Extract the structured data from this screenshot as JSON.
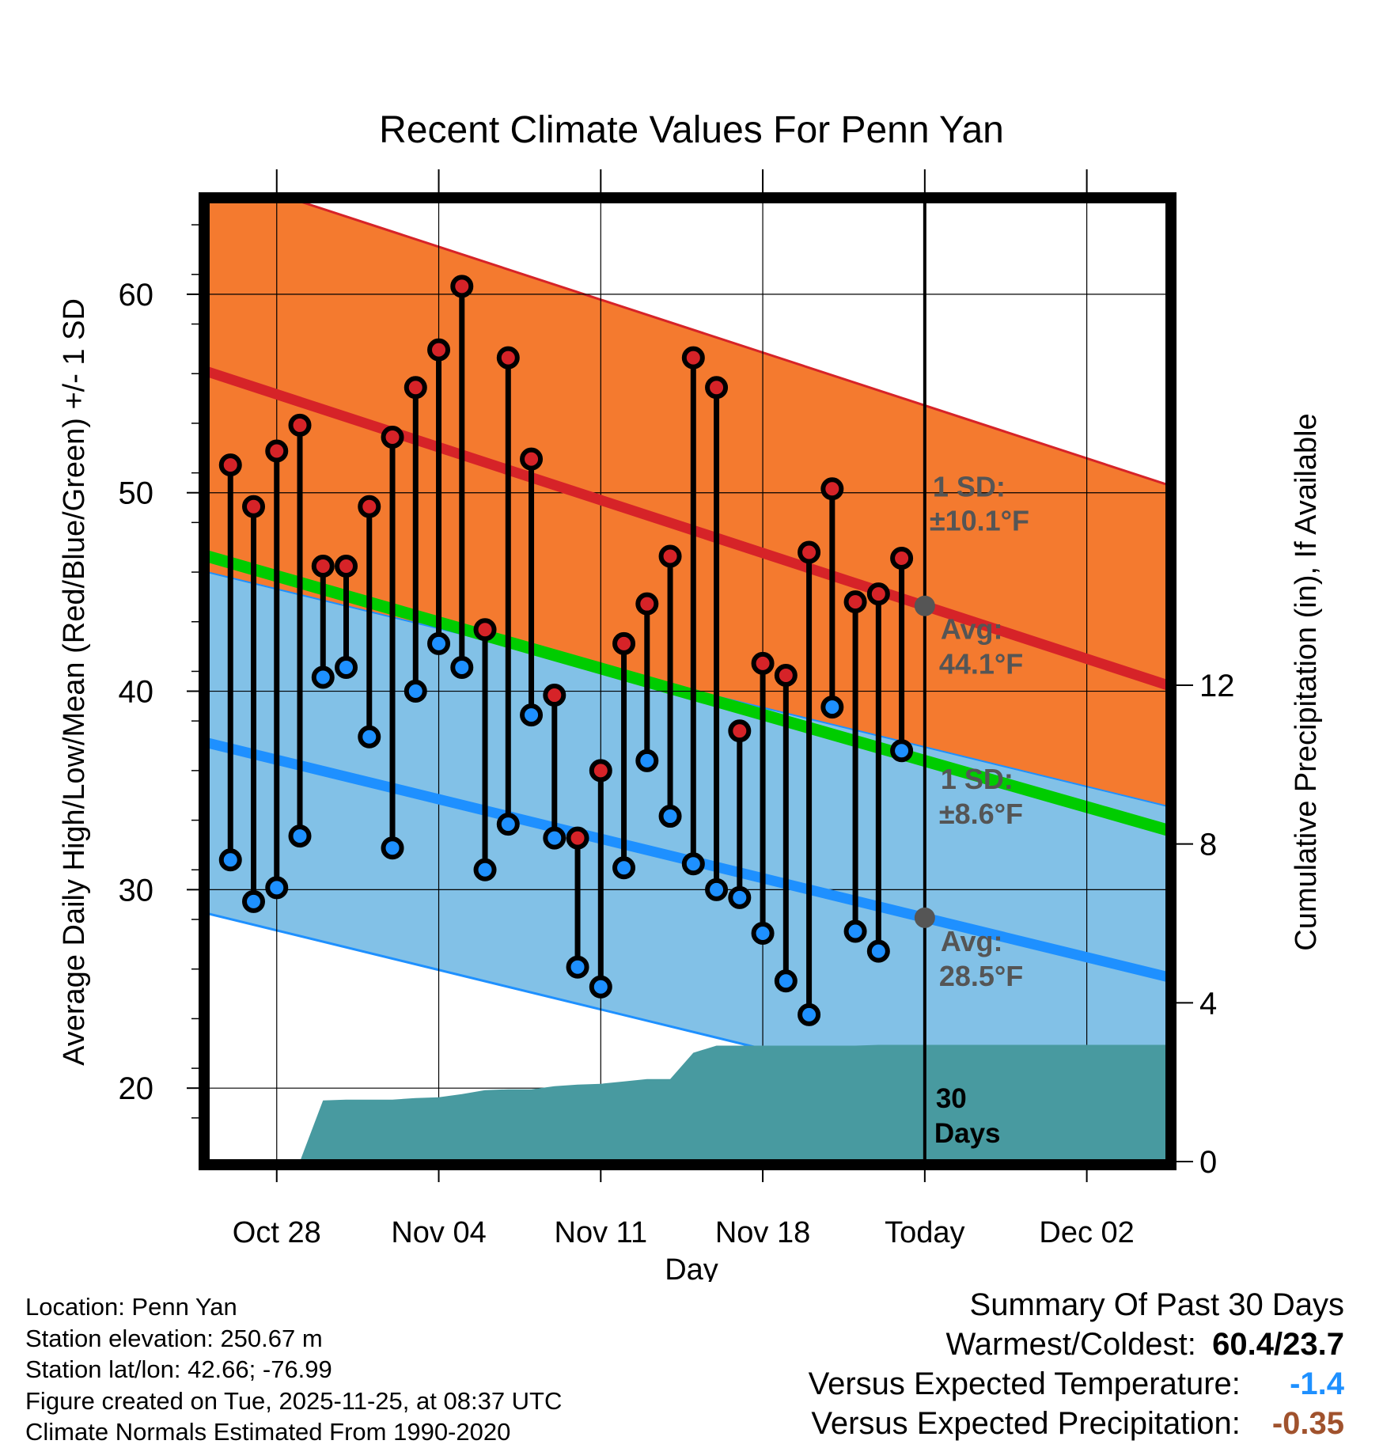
{
  "chart_data": {
    "type": "climate_range",
    "title": "Recent Climate Values For Penn Yan",
    "xlabel": "Day",
    "ylabel_left": "Average Daily High/Low/Mean (Red/Blue/Green) +/- 1 SD",
    "ylabel_right": "Cumulative Precipitation (in), If Available",
    "x_tick_labels": [
      "Oct 28",
      "Nov 04",
      "Nov 11",
      "Nov 18",
      "Today",
      "Dec 02"
    ],
    "x_tick_days": [
      3,
      10,
      17,
      24,
      31,
      38
    ],
    "x_range_days": [
      0,
      41.5
    ],
    "y_left_ticks": [
      20,
      30,
      40,
      50,
      60
    ],
    "y_left_range": [
      16.3,
      64.7
    ],
    "y_right_ticks": [
      0,
      4,
      8,
      12
    ],
    "y_right_range": [
      0,
      24.2
    ],
    "today_day": 31,
    "normal_high_avg": {
      "start": 56.1,
      "end": 40.3
    },
    "normal_high_sd": 10.1,
    "normal_low_avg": {
      "start": 37.4,
      "end": 25.6
    },
    "normal_low_sd": 8.6,
    "normal_mean": {
      "start": 46.8,
      "end": 33.0
    },
    "observed_days": [
      1,
      2,
      3,
      4,
      5,
      6,
      7,
      8,
      9,
      10,
      11,
      12,
      13,
      14,
      15,
      16,
      17,
      18,
      19,
      20,
      21,
      22,
      23,
      24,
      25,
      26,
      27,
      28,
      29,
      30
    ],
    "observed_high": [
      51.4,
      49.3,
      52.1,
      53.4,
      46.3,
      46.3,
      49.3,
      52.8,
      55.3,
      57.2,
      60.4,
      43.1,
      56.8,
      51.7,
      39.8,
      32.6,
      36.0,
      42.4,
      44.4,
      46.8,
      56.8,
      55.3,
      38.0,
      41.4,
      40.8,
      47.0,
      50.2,
      44.5,
      44.9,
      46.7
    ],
    "observed_low": [
      31.5,
      29.4,
      30.1,
      32.7,
      40.7,
      41.2,
      37.7,
      32.1,
      40.0,
      42.4,
      41.2,
      31.0,
      33.3,
      38.8,
      32.6,
      26.1,
      25.1,
      31.1,
      36.5,
      33.7,
      31.3,
      30.0,
      29.6,
      27.8,
      25.4,
      23.7,
      39.2,
      27.9,
      26.9,
      37.0
    ],
    "precip_days": [
      0,
      4,
      5,
      6,
      7,
      8,
      9,
      10,
      11,
      12,
      13,
      14,
      15,
      16,
      17,
      18,
      19,
      20,
      21,
      22,
      23,
      24,
      25,
      26,
      27,
      28,
      29,
      30,
      41.5
    ],
    "precip_cumulative": [
      0,
      0,
      1.54,
      1.56,
      1.56,
      1.56,
      1.6,
      1.62,
      1.7,
      1.8,
      1.82,
      1.82,
      1.9,
      1.94,
      1.96,
      2.02,
      2.08,
      2.08,
      2.74,
      2.92,
      2.92,
      2.92,
      2.92,
      2.92,
      2.92,
      2.92,
      2.94,
      2.94,
      2.94
    ],
    "annotations": {
      "high_sd_label": "1 SD:",
      "high_sd_value": "±10.1°F",
      "high_avg_label": "Avg:",
      "high_avg_value": "44.1°F",
      "low_sd_label": "1 SD:",
      "low_sd_value": "±8.6°F",
      "low_avg_label": "Avg:",
      "low_avg_value": "28.5°F",
      "period_number": "30",
      "period_unit": "Days"
    },
    "colors": {
      "high_band": "#f47a2f",
      "high_line": "#d62328",
      "low_band": "#82c1e7",
      "low_line": "#1e90ff",
      "mean_line": "#00cc00",
      "overlap": "#9b1010",
      "precip": "#489aa0",
      "high_dot": "#d62328",
      "low_dot": "#1e90ff",
      "annotation": "#555555"
    }
  },
  "info": {
    "location": "Location: Penn Yan",
    "elevation": "Station elevation: 250.67 m",
    "latlon": "Station lat/lon: 42.66; -76.99",
    "created": "Figure created on Tue, 2025-11-25, at 08:37 UTC",
    "normals": "Climate Normals Estimated From 1990-2020"
  },
  "summary": {
    "title": "Summary Of Past 30 Days",
    "warm_cold_label": "Warmest/Coldest:",
    "warm_cold_value": "60.4/23.7",
    "temp_label": "Versus Expected Temperature:",
    "temp_value": "-1.4",
    "temp_color": "#1e90ff",
    "precip_label": "Versus Expected Precipitation:",
    "precip_value": "-0.35",
    "precip_color": "#a0522d"
  }
}
